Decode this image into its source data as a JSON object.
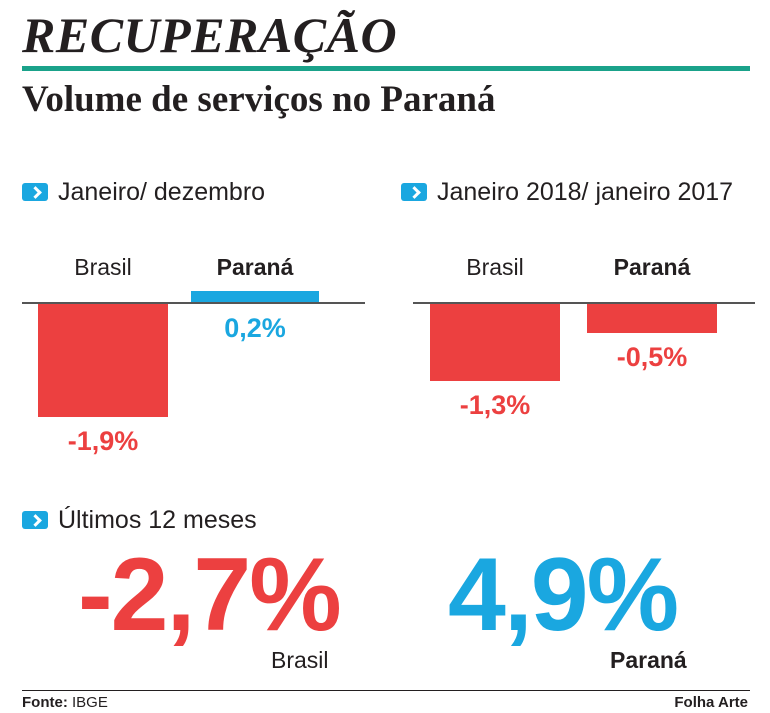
{
  "header": {
    "headline": "RECUPERAÇÃO",
    "subtitle": "Volume de serviços no Paraná"
  },
  "colors": {
    "negative": "#ec4040",
    "positive": "#1aa7e0",
    "accent_rule": "#1aa28a",
    "text": "#231f20"
  },
  "chart_data": [
    {
      "type": "bar",
      "title": "Janeiro/ dezembro",
      "categories": [
        "Brasil",
        "Paraná"
      ],
      "values": [
        -1.9,
        0.2
      ],
      "value_labels": [
        "-1,9%",
        "0,2%"
      ],
      "unit": "%",
      "ylim": [
        -2.0,
        0.2
      ]
    },
    {
      "type": "bar",
      "title": "Janeiro 2018/ janeiro 2017",
      "categories": [
        "Brasil",
        "Paraná"
      ],
      "values": [
        -1.3,
        -0.5
      ],
      "value_labels": [
        "-1,3%",
        "-0,5%"
      ],
      "unit": "%",
      "ylim": [
        -2.0,
        0.2
      ]
    }
  ],
  "last12": {
    "title": "Últimos 12 meses",
    "items": [
      {
        "value": "-2,7%",
        "label": "Brasil"
      },
      {
        "value": "4,9%",
        "label": "Paraná"
      }
    ]
  },
  "footer": {
    "source_prefix": "Fonte:",
    "source": " IBGE",
    "credit": "Folha Arte"
  }
}
